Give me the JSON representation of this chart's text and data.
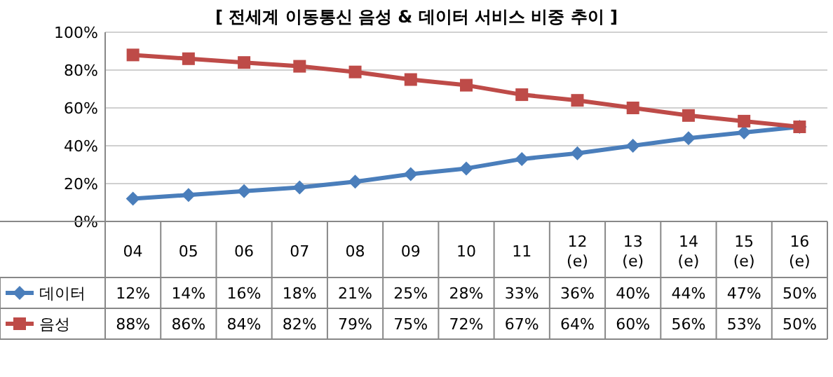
{
  "chart_data": {
    "type": "line",
    "title": "[ 전세계 이동통신 음성 & 데이터 서비스 비중 추이 ]",
    "categories": [
      "04",
      "05",
      "06",
      "07",
      "08",
      "09",
      "10",
      "11",
      "12\n(e)",
      "13\n(e)",
      "14\n(e)",
      "15\n(e)",
      "16\n(e)"
    ],
    "series": [
      {
        "name": "데이터",
        "color": "#4a7ebb",
        "marker": "diamond",
        "values": [
          12,
          14,
          16,
          18,
          21,
          25,
          28,
          33,
          36,
          40,
          44,
          47,
          50
        ],
        "value_labels": [
          "12%",
          "14%",
          "16%",
          "18%",
          "21%",
          "25%",
          "28%",
          "33%",
          "36%",
          "40%",
          "44%",
          "47%",
          "50%"
        ]
      },
      {
        "name": "음성",
        "color": "#be4b48",
        "marker": "square",
        "values": [
          88,
          86,
          84,
          82,
          79,
          75,
          72,
          67,
          64,
          60,
          56,
          53,
          50
        ],
        "value_labels": [
          "88%",
          "86%",
          "84%",
          "82%",
          "79%",
          "75%",
          "72%",
          "67%",
          "64%",
          "60%",
          "56%",
          "53%",
          "50%"
        ]
      }
    ],
    "ylim": [
      0,
      100
    ],
    "yticks": [
      {
        "value": 0,
        "label": "0%"
      },
      {
        "value": 20,
        "label": "20%"
      },
      {
        "value": 40,
        "label": "40%"
      },
      {
        "value": 60,
        "label": "60%"
      },
      {
        "value": 80,
        "label": "80%"
      },
      {
        "value": 100,
        "label": "100%"
      }
    ],
    "grid": "y",
    "legend": "bottom left",
    "line_style": "solid"
  }
}
